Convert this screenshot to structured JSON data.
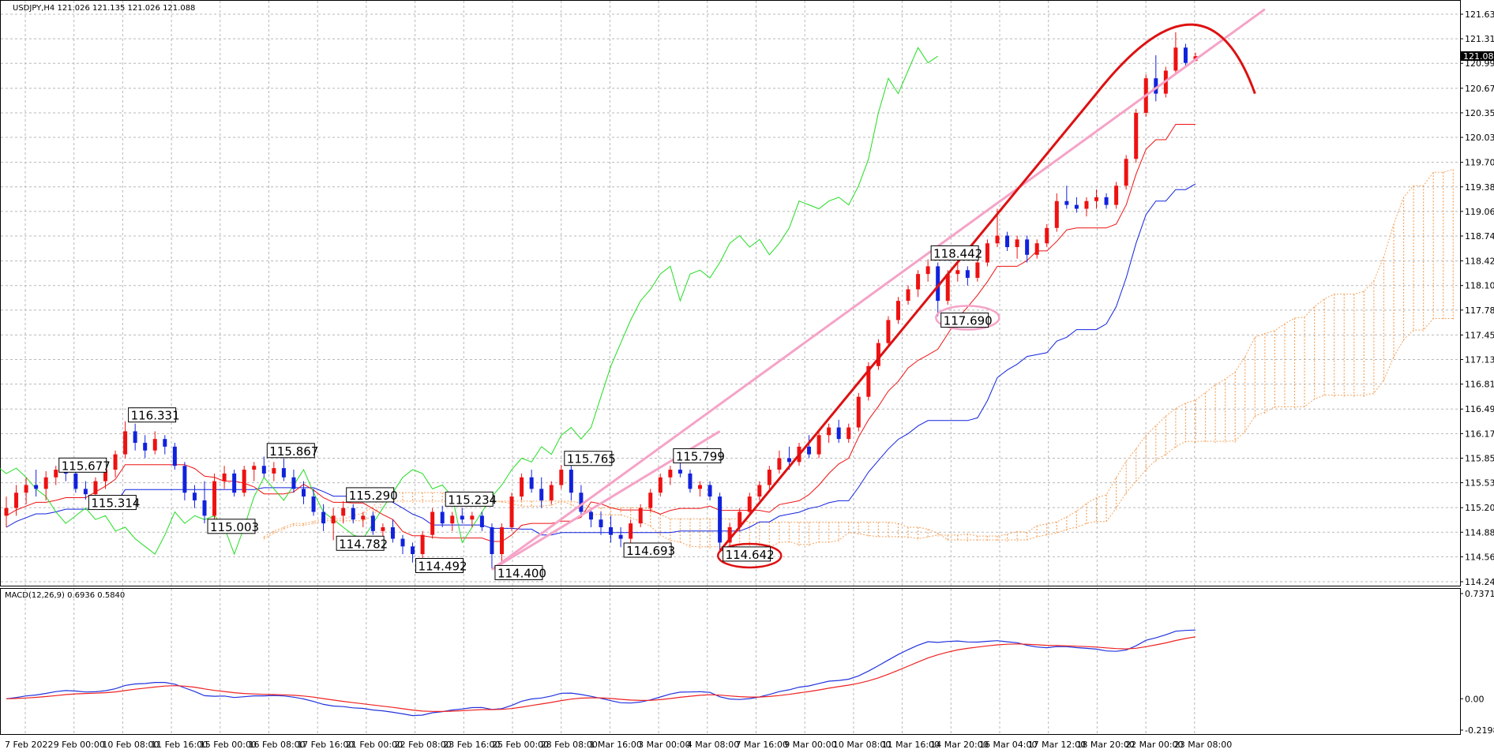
{
  "chart_data": {
    "type": "candlestick",
    "symbol_header": "USDJPY,H4  121.026 121.135 121.026 121.088",
    "last_price": "121.088",
    "grid": true,
    "y_ticks": [
      "121.635",
      "121.315",
      "120.995",
      "120.670",
      "120.350",
      "120.030",
      "119.705",
      "119.385",
      "119.065",
      "118.745",
      "118.420",
      "118.100",
      "117.780",
      "117.455",
      "117.135",
      "116.815",
      "116.490",
      "116.170",
      "115.850",
      "115.530",
      "115.205",
      "114.885",
      "114.565",
      "114.240"
    ],
    "ylim": [
      114.24,
      121.635
    ],
    "x_ticks": [
      "7 Feb 2022",
      "9 Feb 00:00",
      "10 Feb 08:00",
      "11 Feb 16:00",
      "15 Feb 00:00",
      "16 Feb 08:00",
      "17 Feb 16:00",
      "21 Feb 00:00",
      "22 Feb 08:00",
      "23 Feb 16:00",
      "25 Feb 00:00",
      "28 Feb 08:00",
      "1 Mar 16:00",
      "3 Mar 00:00",
      "4 Mar 08:00",
      "7 Mar 16:00",
      "9 Mar 00:00",
      "10 Mar 08:00",
      "11 Mar 16:00",
      "14 Mar 20:00",
      "16 Mar 04:00",
      "17 Mar 12:00",
      "18 Mar 20:00",
      "22 Mar 00:00",
      "23 Mar 08:00"
    ],
    "candles": [
      [
        115.1,
        115.35,
        114.95,
        115.2
      ],
      [
        115.2,
        115.5,
        115.1,
        115.4
      ],
      [
        115.4,
        115.6,
        115.25,
        115.5
      ],
      [
        115.5,
        115.7,
        115.35,
        115.45
      ],
      [
        115.45,
        115.68,
        115.3,
        115.6
      ],
      [
        115.6,
        115.75,
        115.5,
        115.7
      ],
      [
        115.7,
        115.82,
        115.55,
        115.65
      ],
      [
        115.65,
        115.7,
        115.4,
        115.45
      ],
      [
        115.45,
        115.55,
        115.31,
        115.38
      ],
      [
        115.38,
        115.6,
        115.3,
        115.55
      ],
      [
        115.55,
        115.8,
        115.45,
        115.7
      ],
      [
        115.7,
        115.95,
        115.6,
        115.9
      ],
      [
        115.9,
        116.33,
        115.85,
        116.2
      ],
      [
        116.2,
        116.3,
        115.95,
        116.05
      ],
      [
        116.05,
        116.15,
        115.85,
        115.95
      ],
      [
        115.95,
        116.2,
        115.9,
        116.1
      ],
      [
        116.1,
        116.15,
        115.9,
        116.0
      ],
      [
        116.0,
        116.05,
        115.7,
        115.75
      ],
      [
        115.75,
        115.8,
        115.3,
        115.4
      ],
      [
        115.4,
        115.5,
        115.2,
        115.3
      ],
      [
        115.3,
        115.55,
        115.0,
        115.1
      ],
      [
        115.1,
        115.65,
        115.05,
        115.55
      ],
      [
        115.55,
        115.75,
        115.45,
        115.65
      ],
      [
        115.65,
        115.7,
        115.35,
        115.4
      ],
      [
        115.4,
        115.75,
        115.35,
        115.7
      ],
      [
        115.7,
        115.8,
        115.55,
        115.75
      ],
      [
        115.75,
        115.87,
        115.6,
        115.65
      ],
      [
        115.65,
        115.8,
        115.55,
        115.72
      ],
      [
        115.72,
        115.85,
        115.55,
        115.6
      ],
      [
        115.6,
        115.7,
        115.4,
        115.45
      ],
      [
        115.45,
        115.55,
        115.25,
        115.35
      ],
      [
        115.35,
        115.45,
        115.1,
        115.15
      ],
      [
        115.15,
        115.25,
        114.9,
        115.0
      ],
      [
        115.0,
        115.2,
        114.78,
        115.1
      ],
      [
        115.1,
        115.29,
        115.0,
        115.2
      ],
      [
        115.2,
        115.25,
        115.0,
        115.05
      ],
      [
        115.05,
        115.15,
        114.95,
        115.1
      ],
      [
        115.1,
        115.15,
        114.85,
        114.9
      ],
      [
        114.9,
        115.0,
        114.8,
        114.95
      ],
      [
        114.95,
        115.05,
        114.75,
        114.8
      ],
      [
        114.8,
        114.85,
        114.6,
        114.7
      ],
      [
        114.7,
        114.75,
        114.49,
        114.6
      ],
      [
        114.6,
        114.9,
        114.55,
        114.85
      ],
      [
        114.85,
        115.2,
        114.8,
        115.15
      ],
      [
        115.15,
        115.23,
        114.95,
        115.0
      ],
      [
        115.0,
        115.15,
        114.9,
        115.1
      ],
      [
        115.1,
        115.2,
        115.0,
        115.05
      ],
      [
        115.05,
        115.15,
        114.95,
        115.1
      ],
      [
        115.1,
        115.15,
        114.9,
        114.95
      ],
      [
        114.95,
        115.0,
        114.4,
        114.6
      ],
      [
        114.6,
        115.0,
        114.5,
        114.95
      ],
      [
        114.95,
        115.4,
        114.9,
        115.35
      ],
      [
        115.35,
        115.65,
        115.3,
        115.6
      ],
      [
        115.6,
        115.7,
        115.4,
        115.45
      ],
      [
        115.45,
        115.6,
        115.2,
        115.3
      ],
      [
        115.3,
        115.55,
        115.25,
        115.5
      ],
      [
        115.5,
        115.76,
        115.45,
        115.7
      ],
      [
        115.7,
        115.75,
        115.3,
        115.4
      ],
      [
        115.4,
        115.5,
        115.1,
        115.15
      ],
      [
        115.15,
        115.2,
        114.95,
        115.05
      ],
      [
        115.05,
        115.15,
        114.85,
        114.95
      ],
      [
        114.95,
        115.1,
        114.75,
        114.85
      ],
      [
        114.85,
        114.95,
        114.69,
        114.8
      ],
      [
        114.8,
        115.05,
        114.75,
        115.0
      ],
      [
        115.0,
        115.25,
        114.95,
        115.2
      ],
      [
        115.2,
        115.45,
        115.15,
        115.4
      ],
      [
        115.4,
        115.65,
        115.35,
        115.6
      ],
      [
        115.6,
        115.75,
        115.5,
        115.7
      ],
      [
        115.7,
        115.8,
        115.6,
        115.65
      ],
      [
        115.65,
        115.7,
        115.4,
        115.45
      ],
      [
        115.45,
        115.55,
        115.35,
        115.5
      ],
      [
        115.5,
        115.55,
        115.3,
        115.35
      ],
      [
        115.35,
        115.4,
        114.64,
        114.75
      ],
      [
        114.75,
        115.0,
        114.7,
        114.95
      ],
      [
        114.95,
        115.2,
        114.9,
        115.15
      ],
      [
        115.15,
        115.4,
        115.1,
        115.35
      ],
      [
        115.35,
        115.55,
        115.3,
        115.5
      ],
      [
        115.5,
        115.75,
        115.45,
        115.7
      ],
      [
        115.7,
        115.95,
        115.65,
        115.85
      ],
      [
        115.85,
        116.0,
        115.7,
        115.8
      ],
      [
        115.8,
        116.05,
        115.75,
        116.0
      ],
      [
        116.0,
        116.15,
        115.85,
        115.9
      ],
      [
        115.9,
        116.2,
        115.85,
        116.15
      ],
      [
        116.15,
        116.3,
        116.05,
        116.25
      ],
      [
        116.25,
        116.35,
        116.05,
        116.1
      ],
      [
        116.1,
        116.3,
        116.05,
        116.25
      ],
      [
        116.25,
        116.7,
        116.2,
        116.65
      ],
      [
        116.65,
        117.1,
        116.6,
        117.05
      ],
      [
        117.05,
        117.4,
        117.0,
        117.35
      ],
      [
        117.35,
        117.7,
        117.3,
        117.65
      ],
      [
        117.65,
        117.95,
        117.6,
        117.9
      ],
      [
        117.9,
        118.1,
        117.85,
        118.05
      ],
      [
        118.05,
        118.3,
        117.95,
        118.25
      ],
      [
        118.25,
        118.44,
        118.15,
        118.35
      ],
      [
        118.35,
        118.4,
        117.7,
        117.9
      ],
      [
        117.9,
        118.3,
        117.85,
        118.25
      ],
      [
        118.25,
        118.4,
        118.15,
        118.3
      ],
      [
        118.3,
        118.35,
        118.1,
        118.2
      ],
      [
        118.2,
        118.45,
        118.15,
        118.4
      ],
      [
        118.4,
        118.7,
        118.35,
        118.65
      ],
      [
        118.65,
        119.1,
        118.6,
        118.75
      ],
      [
        118.75,
        118.8,
        118.55,
        118.6
      ],
      [
        118.6,
        118.75,
        118.45,
        118.7
      ],
      [
        118.7,
        118.75,
        118.4,
        118.5
      ],
      [
        118.5,
        118.7,
        118.45,
        118.65
      ],
      [
        118.65,
        118.9,
        118.6,
        118.85
      ],
      [
        118.85,
        119.3,
        118.8,
        119.2
      ],
      [
        119.2,
        119.4,
        119.1,
        119.15
      ],
      [
        119.15,
        119.25,
        119.05,
        119.1
      ],
      [
        119.1,
        119.25,
        119.0,
        119.2
      ],
      [
        119.2,
        119.35,
        119.1,
        119.25
      ],
      [
        119.25,
        119.3,
        119.1,
        119.15
      ],
      [
        119.15,
        119.45,
        119.1,
        119.4
      ],
      [
        119.4,
        119.8,
        119.35,
        119.75
      ],
      [
        119.75,
        120.4,
        119.7,
        120.35
      ],
      [
        120.35,
        120.85,
        120.3,
        120.8
      ],
      [
        120.8,
        121.1,
        120.5,
        120.6
      ],
      [
        120.6,
        120.95,
        120.55,
        120.9
      ],
      [
        120.9,
        121.4,
        120.85,
        121.2
      ],
      [
        121.2,
        121.25,
        120.95,
        121.0
      ],
      [
        121.026,
        121.135,
        121.026,
        121.088
      ]
    ],
    "price_labels": [
      "116.331",
      "115.677",
      "115.314",
      "115.867",
      "115.003",
      "115.290",
      "114.782",
      "114.492",
      "115.234",
      "114.400",
      "115.765",
      "114.693",
      "115.799",
      "114.642",
      "118.442",
      "117.690"
    ],
    "macd": {
      "header": "MACD(12,26,9) 0.6936 0.5840",
      "y_ticks": [
        "0.7371",
        "0.00",
        "-0.2198"
      ],
      "ylim": [
        -0.2198,
        0.7371
      ]
    },
    "colors": {
      "bull": "#ee1111",
      "bear": "#1122dd",
      "tenkan": "#ee1111",
      "kijun": "#1122dd",
      "chikou": "#22dd22",
      "cloud": "#f4a460",
      "trend": "#dd1111",
      "channel": "#f5a3c7",
      "macd_line": "#2233dd",
      "signal_line": "#ee2222"
    }
  }
}
